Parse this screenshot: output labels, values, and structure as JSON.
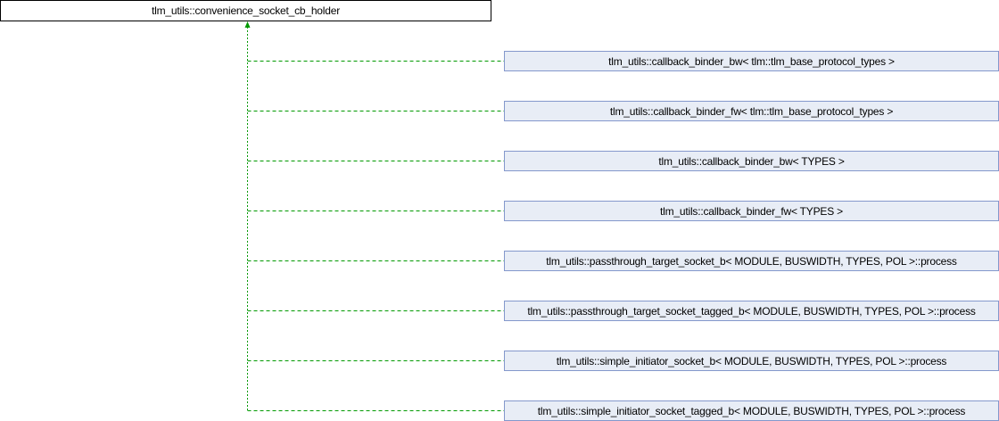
{
  "diagram": {
    "base_class": "tlm_utils::convenience_socket_cb_holder",
    "derived_classes": [
      "tlm_utils::callback_binder_bw< tlm::tlm_base_protocol_types >",
      "tlm_utils::callback_binder_fw< tlm::tlm_base_protocol_types >",
      "tlm_utils::callback_binder_bw< TYPES >",
      "tlm_utils::callback_binder_fw< TYPES >",
      "tlm_utils::passthrough_target_socket_b< MODULE, BUSWIDTH, TYPES, POL >::process",
      "tlm_utils::passthrough_target_socket_tagged_b< MODULE, BUSWIDTH, TYPES, POL >::process",
      "tlm_utils::simple_initiator_socket_b< MODULE, BUSWIDTH, TYPES, POL >::process",
      "tlm_utils::simple_initiator_socket_tagged_b< MODULE, BUSWIDTH, TYPES, POL >::process"
    ],
    "colors": {
      "edge": "#009900",
      "derived_fill": "#e8edf6",
      "derived_border": "#8498cc"
    }
  }
}
